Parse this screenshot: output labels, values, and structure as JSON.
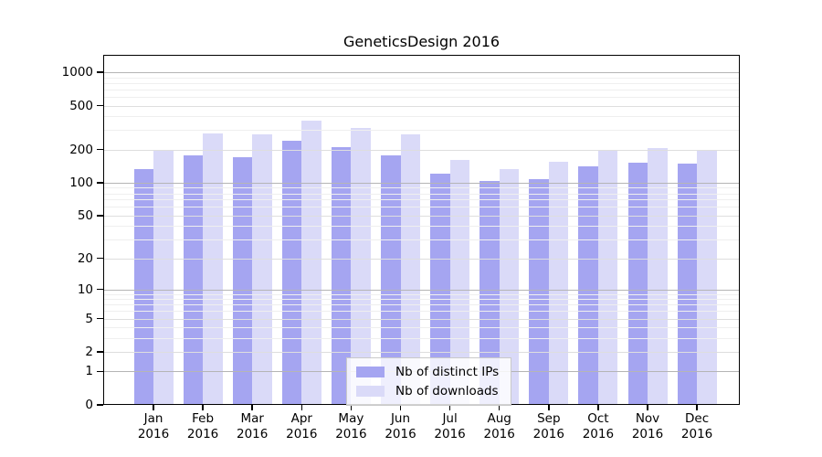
{
  "chart_data": {
    "type": "bar",
    "title": "GeneticsDesign 2016",
    "categories": [
      "Jan",
      "Feb",
      "Mar",
      "Apr",
      "May",
      "Jun",
      "Jul",
      "Aug",
      "Sep",
      "Oct",
      "Nov",
      "Dec"
    ],
    "x_year_label": "2016",
    "series": [
      {
        "name": "Nb of distinct IPs",
        "color": "#a5a5f1",
        "values": [
          133,
          178,
          170,
          242,
          210,
          176,
          121,
          103,
          107,
          141,
          152,
          150
        ]
      },
      {
        "name": "Nb of downloads",
        "color": "#dadaf8",
        "values": [
          200,
          281,
          273,
          363,
          314,
          276,
          160,
          132,
          155,
          196,
          205,
          200
        ]
      }
    ],
    "xlabel": "",
    "ylabel": "",
    "y_scale": "log10(value+1)",
    "ylim": [
      0,
      1000
    ],
    "y_ticks": [
      0,
      1,
      2,
      5,
      10,
      20,
      50,
      100,
      200,
      500,
      1000
    ],
    "y_major_gridlines": [
      1,
      10,
      100,
      1000
    ],
    "y_minor_gridlines": [
      2,
      5,
      20,
      50,
      200,
      500
    ],
    "y_faint_gridlines": [
      3,
      4,
      6,
      7,
      8,
      9,
      30,
      40,
      60,
      70,
      80,
      90,
      300,
      400,
      600,
      700,
      800,
      900
    ],
    "grid": "horizontal, drawn over bars",
    "legend_position": "bottom-center",
    "colors": {
      "axis": "#000000",
      "grid_major": "#b5b5b5",
      "grid_minor": "#dedede",
      "grid_faint": "#efefef",
      "legend_border": "#c9c9c9",
      "background": "#ffffff"
    }
  }
}
